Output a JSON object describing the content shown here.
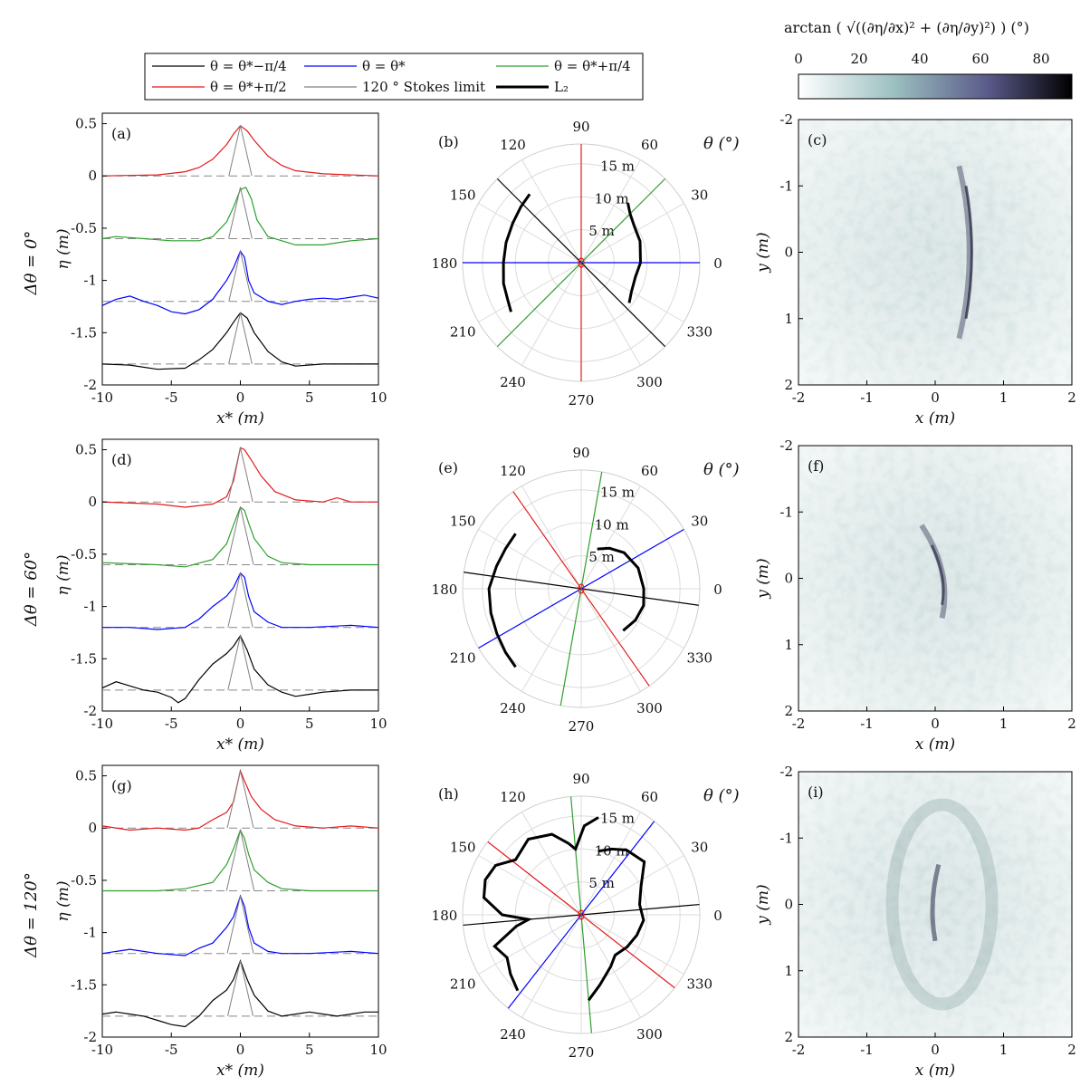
{
  "legend": {
    "items": [
      {
        "label": "θ = θ*−π/4",
        "color": "#000000",
        "width": 1.2
      },
      {
        "label": "θ = θ*",
        "color": "#0000ff",
        "width": 1.2
      },
      {
        "label": "θ = θ*+π/4",
        "color": "#2ca02c",
        "width": 1.2
      },
      {
        "label": "θ = θ*+π/2",
        "color": "#e41a1c",
        "width": 1.2
      },
      {
        "label": "120 ° Stokes limit",
        "color": "#808080",
        "width": 1.2
      },
      {
        "label": "L₂",
        "color": "#000000",
        "width": 3
      }
    ]
  },
  "colorbar": {
    "label": "arctan ( √((∂η/∂x)² + (∂η/∂y)²) )  (°)",
    "ticks": [
      "0",
      "20",
      "40",
      "60",
      "80"
    ],
    "range": [
      0,
      90
    ],
    "colors": [
      "#ffffff",
      "#7aa7a7",
      "#5a5a8a",
      "#000000"
    ]
  },
  "row_labels": [
    "Δθ = 0°",
    "Δθ = 60°",
    "Δθ = 120°"
  ],
  "profile_axes": {
    "xlabel": "x* (m)",
    "ylabel": "η (m)",
    "xlim": [
      -10,
      10
    ],
    "ylim": [
      -2,
      0.6
    ],
    "xticks": [
      "-10",
      "-5",
      "0",
      "5",
      "10"
    ],
    "yticks": [
      "0.5",
      "0",
      "-0.5",
      "-1",
      "-1.5",
      "-2"
    ]
  },
  "polar_axes": {
    "theta_label": "θ (°)",
    "angle_labels": [
      "0",
      "30",
      "60",
      "90",
      "120",
      "150",
      "180",
      "210",
      "240",
      "270",
      "300",
      "330"
    ],
    "radial_labels": [
      "5 m",
      "10 m",
      "15 m"
    ]
  },
  "map_axes": {
    "xlabel": "x (m)",
    "ylabel": "y (m)",
    "xticks": [
      "-2",
      "-1",
      "0",
      "1",
      "2"
    ],
    "yticks": [
      "-2",
      "-1",
      "0",
      "1",
      "2"
    ]
  },
  "panel_labels": [
    "(a)",
    "(b)",
    "(c)",
    "(d)",
    "(e)",
    "(f)",
    "(g)",
    "(h)",
    "(i)"
  ],
  "chart_data": [
    {
      "type": "line",
      "panel": "(a)",
      "xlabel": "x* (m)",
      "ylabel": "η (m)",
      "xlim": [
        -10,
        10
      ],
      "ylim": [
        -2,
        0.6
      ],
      "series": [
        {
          "color": "#e41a1c",
          "offset": 0,
          "x": [
            -10,
            -6,
            -4,
            -3,
            -2,
            -1,
            -0.5,
            0,
            0.5,
            1,
            2,
            3,
            4,
            6,
            10
          ],
          "y": [
            0,
            0.01,
            0.04,
            0.08,
            0.16,
            0.3,
            0.4,
            0.48,
            0.43,
            0.34,
            0.19,
            0.1,
            0.05,
            0.02,
            0
          ]
        },
        {
          "color": "#2ca02c",
          "offset": -0.6,
          "x": [
            -10,
            -9,
            -7,
            -5,
            -3,
            -2,
            -1,
            -0.5,
            0,
            0.4,
            0.8,
            1.2,
            2,
            4,
            6,
            8,
            10
          ],
          "y": [
            -0.6,
            -0.58,
            -0.6,
            -0.62,
            -0.62,
            -0.58,
            -0.44,
            -0.3,
            -0.13,
            -0.11,
            -0.22,
            -0.42,
            -0.58,
            -0.66,
            -0.66,
            -0.62,
            -0.6
          ]
        },
        {
          "color": "#0000ff",
          "offset": -1.2,
          "x": [
            -10,
            -9,
            -8,
            -7,
            -6,
            -5,
            -4,
            -3,
            -2,
            -1,
            -0.5,
            0,
            0.3,
            0.6,
            1,
            2,
            3,
            4,
            5,
            6,
            7,
            8,
            9,
            10
          ],
          "y": [
            -1.24,
            -1.18,
            -1.15,
            -1.2,
            -1.24,
            -1.3,
            -1.32,
            -1.28,
            -1.18,
            -1.0,
            -0.88,
            -0.72,
            -0.78,
            -1.0,
            -1.12,
            -1.2,
            -1.23,
            -1.2,
            -1.18,
            -1.17,
            -1.18,
            -1.16,
            -1.14,
            -1.17
          ]
        },
        {
          "color": "#000000",
          "offset": -1.8,
          "x": [
            -10,
            -8,
            -6,
            -4,
            -3,
            -2,
            -1,
            -0.5,
            0,
            0.5,
            1,
            2,
            3,
            4,
            6,
            8,
            10
          ],
          "y": [
            -1.8,
            -1.81,
            -1.85,
            -1.84,
            -1.76,
            -1.66,
            -1.5,
            -1.4,
            -1.31,
            -1.36,
            -1.5,
            -1.68,
            -1.78,
            -1.82,
            -1.8,
            -1.8,
            -1.8
          ]
        }
      ]
    },
    {
      "type": "polar",
      "panel": "(b)",
      "theta_label": "θ (°)",
      "r_max": 18,
      "lines_deg": [
        {
          "color": "#000000",
          "angle": 135
        },
        {
          "color": "#0000ff",
          "angle": 0
        },
        {
          "color": "#2ca02c",
          "angle": 45
        },
        {
          "color": "#e41a1c",
          "angle": 90
        }
      ],
      "L2": [
        {
          "theta": [
            127,
            137,
            150,
            165,
            180,
            195,
            207,
            215
          ],
          "r": [
            13,
            12.5,
            12,
            11.8,
            11.8,
            12.2,
            12.5,
            13
          ]
        },
        {
          "theta": [
            52,
            45,
            35,
            20,
            0,
            -15,
            -30,
            -40
          ],
          "r": [
            11.5,
            10.5,
            9.8,
            9.5,
            9,
            8.5,
            8.8,
            9.5
          ]
        }
      ]
    },
    {
      "type": "heatmap",
      "panel": "(c)",
      "xlabel": "x (m)",
      "ylabel": "y (m)",
      "xlim": [
        -2,
        2
      ],
      "ylim": [
        -2,
        2
      ]
    },
    {
      "type": "line",
      "panel": "(d)",
      "xlabel": "x* (m)",
      "ylabel": "η (m)",
      "xlim": [
        -10,
        10
      ],
      "ylim": [
        -2,
        0.6
      ],
      "series": [
        {
          "color": "#e41a1c",
          "offset": 0,
          "x": [
            -10,
            -6,
            -4,
            -2,
            -1,
            -0.5,
            0,
            0.3,
            0.8,
            1.5,
            2.5,
            4,
            6,
            7,
            8,
            10
          ],
          "y": [
            0,
            -0.02,
            -0.05,
            -0.02,
            0.05,
            0.2,
            0.52,
            0.5,
            0.4,
            0.25,
            0.1,
            0.02,
            0,
            0.04,
            0,
            0
          ]
        },
        {
          "color": "#2ca02c",
          "offset": -0.6,
          "x": [
            -10,
            -6,
            -4,
            -2,
            -1,
            -0.5,
            0,
            0.3,
            0.6,
            1,
            2,
            3,
            5,
            8,
            10
          ],
          "y": [
            -0.58,
            -0.6,
            -0.62,
            -0.55,
            -0.4,
            -0.22,
            -0.05,
            -0.08,
            -0.2,
            -0.35,
            -0.52,
            -0.58,
            -0.6,
            -0.6,
            -0.6
          ]
        },
        {
          "color": "#0000ff",
          "offset": -1.2,
          "x": [
            -10,
            -8,
            -6,
            -4,
            -3,
            -2,
            -1,
            -0.5,
            0,
            0.3,
            0.6,
            1,
            2,
            3,
            5,
            8,
            10
          ],
          "y": [
            -1.2,
            -1.2,
            -1.22,
            -1.2,
            -1.12,
            -1.0,
            -0.9,
            -0.82,
            -0.68,
            -0.72,
            -0.9,
            -1.05,
            -1.15,
            -1.2,
            -1.2,
            -1.18,
            -1.2
          ]
        },
        {
          "color": "#000000",
          "offset": -1.8,
          "x": [
            -10,
            -9,
            -8,
            -7,
            -6,
            -5,
            -4.5,
            -4,
            -3,
            -2,
            -1,
            -0.5,
            0,
            0.5,
            1,
            2,
            3,
            4,
            5,
            6,
            8,
            10
          ],
          "y": [
            -1.78,
            -1.72,
            -1.76,
            -1.8,
            -1.82,
            -1.87,
            -1.92,
            -1.88,
            -1.7,
            -1.55,
            -1.45,
            -1.38,
            -1.28,
            -1.42,
            -1.6,
            -1.75,
            -1.82,
            -1.86,
            -1.84,
            -1.82,
            -1.8,
            -1.8
          ]
        }
      ]
    },
    {
      "type": "polar",
      "panel": "(e)",
      "theta_label": "θ (°)",
      "r_max": 18,
      "lines_deg": [
        {
          "color": "#000000",
          "angle": 172
        },
        {
          "color": "#0000ff",
          "angle": 30
        },
        {
          "color": "#2ca02c",
          "angle": 80
        },
        {
          "color": "#e41a1c",
          "angle": 125
        }
      ],
      "L2": [
        {
          "theta": [
            140,
            152,
            165,
            180,
            195,
            208,
            220,
            230
          ],
          "r": [
            13,
            13,
            13.3,
            14,
            14.2,
            14.5,
            15,
            15.5
          ]
        },
        {
          "theta": [
            68,
            55,
            40,
            20,
            0,
            -15,
            -30,
            -45
          ],
          "r": [
            6.5,
            7.5,
            8.5,
            9.2,
            9.5,
            9.8,
            9.5,
            9
          ]
        }
      ]
    },
    {
      "type": "heatmap",
      "panel": "(f)",
      "xlabel": "x (m)",
      "ylabel": "y (m)",
      "xlim": [
        -2,
        2
      ],
      "ylim": [
        -2,
        2
      ]
    },
    {
      "type": "line",
      "panel": "(g)",
      "xlabel": "x* (m)",
      "ylabel": "η (m)",
      "xlim": [
        -10,
        10
      ],
      "ylim": [
        -2,
        0.6
      ],
      "series": [
        {
          "color": "#e41a1c",
          "offset": 0,
          "x": [
            -10,
            -8,
            -6,
            -4,
            -3,
            -2,
            -1,
            -0.5,
            0,
            0.3,
            0.8,
            1.5,
            2.5,
            4,
            6,
            8,
            10
          ],
          "y": [
            0.02,
            -0.02,
            0,
            -0.02,
            0,
            0.08,
            0.15,
            0.25,
            0.55,
            0.45,
            0.3,
            0.18,
            0.08,
            0.02,
            0,
            0.02,
            0
          ]
        },
        {
          "color": "#2ca02c",
          "offset": -0.6,
          "x": [
            -10,
            -6,
            -4,
            -2,
            -1,
            -0.5,
            0,
            0.3,
            0.6,
            1,
            2,
            3,
            5,
            8,
            10
          ],
          "y": [
            -0.6,
            -0.6,
            -0.58,
            -0.52,
            -0.35,
            -0.2,
            -0.02,
            -0.1,
            -0.25,
            -0.4,
            -0.52,
            -0.58,
            -0.6,
            -0.6,
            -0.6
          ]
        },
        {
          "color": "#0000ff",
          "offset": -1.2,
          "x": [
            -10,
            -8,
            -6,
            -4,
            -3,
            -2,
            -1,
            -0.5,
            0,
            0.3,
            0.6,
            1,
            2,
            3,
            5,
            8,
            10
          ],
          "y": [
            -1.2,
            -1.16,
            -1.2,
            -1.22,
            -1.15,
            -1.1,
            -0.95,
            -0.85,
            -0.65,
            -0.75,
            -0.95,
            -1.1,
            -1.18,
            -1.2,
            -1.2,
            -1.18,
            -1.2
          ]
        },
        {
          "color": "#000000",
          "offset": -1.8,
          "x": [
            -10,
            -9,
            -8,
            -7,
            -6,
            -5,
            -4,
            -3,
            -2,
            -1,
            -0.5,
            0,
            0.5,
            1,
            2,
            3,
            4,
            5,
            6,
            7,
            8,
            9,
            10
          ],
          "y": [
            -1.78,
            -1.76,
            -1.78,
            -1.8,
            -1.84,
            -1.88,
            -1.9,
            -1.8,
            -1.65,
            -1.55,
            -1.45,
            -1.27,
            -1.45,
            -1.6,
            -1.75,
            -1.8,
            -1.78,
            -1.76,
            -1.78,
            -1.8,
            -1.78,
            -1.76,
            -1.76
          ]
        }
      ]
    },
    {
      "type": "polar",
      "panel": "(h)",
      "theta_label": "θ (°)",
      "r_max": 18,
      "lines_deg": [
        {
          "color": "#000000",
          "angle": 5
        },
        {
          "color": "#0000ff",
          "angle": 52
        },
        {
          "color": "#2ca02c",
          "angle": 95
        },
        {
          "color": "#e41a1c",
          "angle": 142
        }
      ],
      "L2": [
        {
          "theta": [
            80,
            88,
            95,
            100,
            110,
            125,
            140,
            150,
            160,
            170,
            180,
            185,
            190,
            200,
            210,
            220,
            230
          ],
          "r": [
            15,
            13.5,
            10,
            11,
            13,
            14,
            13,
            15,
            15.5,
            15,
            12,
            8,
            10,
            14,
            13,
            14,
            15
          ]
        },
        {
          "theta": [
            75,
            65,
            55,
            40,
            25,
            10,
            -5,
            -20,
            -35,
            -50,
            -60,
            -75,
            -85
          ],
          "r": [
            10,
            11,
            12,
            12.5,
            10,
            9,
            9.5,
            9,
            8.5,
            8,
            9,
            11,
            13
          ]
        }
      ]
    },
    {
      "type": "heatmap",
      "panel": "(i)",
      "xlabel": "x (m)",
      "ylabel": "y (m)",
      "xlim": [
        -2,
        2
      ],
      "ylim": [
        -2,
        2
      ]
    }
  ]
}
